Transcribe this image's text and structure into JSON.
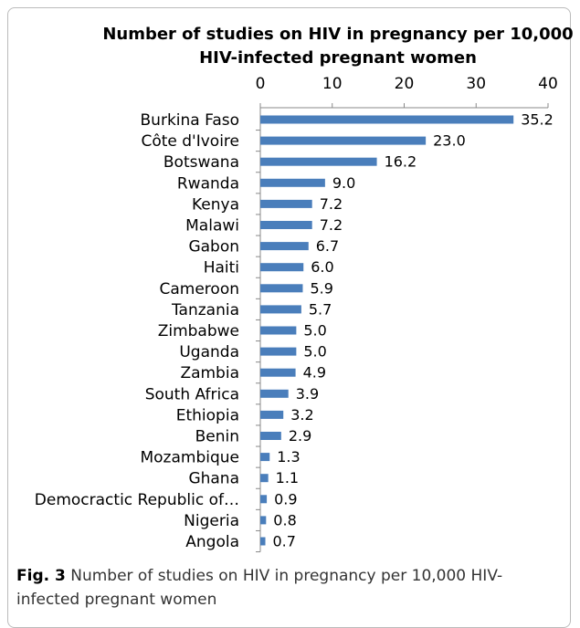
{
  "chart_data": {
    "type": "bar",
    "orientation": "horizontal",
    "title": [
      "Number of studies on HIV in pregnancy per 10,000",
      "HIV-infected pregnant women"
    ],
    "categories": [
      "Burkina Faso",
      "Côte d'Ivoire",
      "Botswana",
      "Rwanda",
      "Kenya",
      "Malawi",
      "Gabon",
      "Haiti",
      "Cameroon",
      "Tanzania",
      "Zimbabwe",
      "Uganda",
      "Zambia",
      "South Africa",
      "Ethiopia",
      "Benin",
      "Mozambique",
      "Ghana",
      "Democractic Republic of…",
      "Nigeria",
      "Angola"
    ],
    "values": [
      35.2,
      23.0,
      16.2,
      9.0,
      7.2,
      7.2,
      6.7,
      6.0,
      5.9,
      5.7,
      5.0,
      5.0,
      4.9,
      3.9,
      3.2,
      2.9,
      1.3,
      1.1,
      0.9,
      0.8,
      0.7
    ],
    "value_labels": [
      "35.2",
      "23.0",
      "16.2",
      "9.0",
      "7.2",
      "7.2",
      "6.7",
      "6.0",
      "5.9",
      "5.7",
      "5.0",
      "5.0",
      "4.9",
      "3.9",
      "3.2",
      "2.9",
      "1.3",
      "1.1",
      "0.9",
      "0.8",
      "0.7"
    ],
    "color": "#4a7ebb",
    "xlim": [
      0,
      40
    ],
    "xticks": [
      0,
      10,
      20,
      30,
      40
    ],
    "grid": false
  },
  "caption": {
    "label": "Fig. 3",
    "text": "Number of studies on HIV in pregnancy per 10,000 HIV-infected pregnant women"
  }
}
